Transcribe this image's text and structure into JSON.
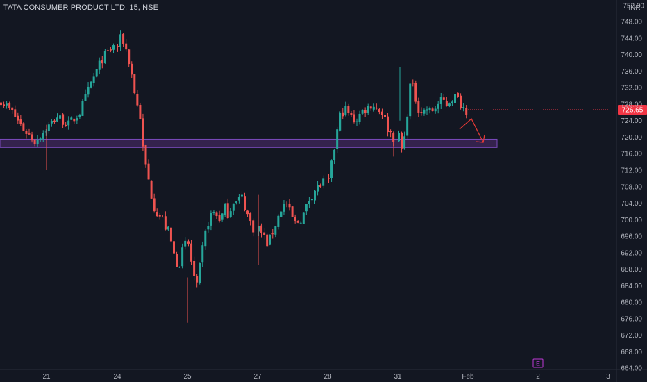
{
  "header": {
    "title": "TATA CONSUMER PRODUCT LTD, 15, NSE"
  },
  "colors": {
    "background": "#131722",
    "up": "#26a69a",
    "down": "#ef5350",
    "zone_fill": "#3b2555",
    "zone_border": "#7b4bbd",
    "axis_text": "#b2b5be",
    "price_tag": "#f23645",
    "arrow": "#e53935",
    "earnings_badge": "#c03ad8"
  },
  "chart_data": {
    "type": "candlestick",
    "title": "TATA CONSUMER PRODUCT LTD, 15, NSE",
    "currency_label": "INR",
    "ylim": [
      662,
      754
    ],
    "yticks": [
      664,
      668,
      672,
      676,
      680,
      684,
      688,
      692,
      696,
      700,
      704,
      708,
      712,
      716,
      720,
      724,
      728,
      732,
      736,
      740,
      744,
      748,
      752
    ],
    "y_top_label": "752.00",
    "last_price": "726.65",
    "last_price_value": 726.65,
    "x_labels": [
      "21",
      "24",
      "25",
      "27",
      "28",
      "31",
      "Feb",
      "2",
      "3"
    ],
    "earnings_marker": "E",
    "support_zone": {
      "low": 717.5,
      "high": 719.5
    },
    "segments": [
      {
        "label": "21",
        "path": [
          729,
          726,
          722,
          719,
          722,
          725,
          723,
          726,
          733,
          739,
          742
        ]
      },
      {
        "label": "24",
        "path": [
          742,
          744,
          743,
          740,
          737,
          732,
          728,
          725,
          716,
          712,
          708,
          704,
          702,
          701,
          700,
          698,
          697,
          693,
          690,
          689,
          692,
          694
        ]
      },
      {
        "label": "25",
        "path": [
          694,
          688,
          683,
          690,
          696,
          700,
          702,
          701,
          700,
          703,
          701,
          705,
          704,
          706,
          703,
          700,
          698
        ]
      },
      {
        "label": "27",
        "path": [
          698,
          696,
          694,
          697,
          700,
          703,
          704,
          701,
          699,
          700,
          702,
          705,
          707,
          708,
          709
        ]
      },
      {
        "label": "28",
        "path": [
          709,
          717,
          725,
          727,
          725,
          724,
          726,
          727,
          728,
          727,
          726,
          722,
          720
        ]
      },
      {
        "label": "31",
        "path": [
          720,
          716,
          725,
          734,
          730,
          727,
          726,
          727,
          726,
          727,
          728,
          729,
          728,
          729,
          730,
          729,
          727.5,
          726.65
        ]
      }
    ]
  }
}
